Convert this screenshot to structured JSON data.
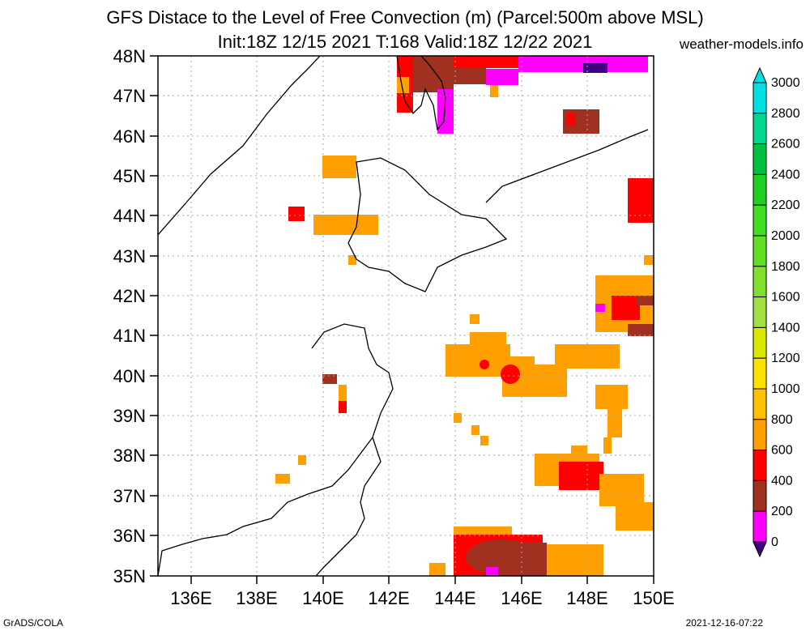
{
  "title_line1": "GFS Distace to the Level of Free Convection (m) (Parcel:500m above MSL)",
  "title_line2": "Init:18Z 12/15 2021 T:168 Valid:18Z 12/22 2021",
  "site": "weather-models.info",
  "footer_left": "GrADS/COLA",
  "footer_right": "2021-12-16-07:22",
  "lat_labels": [
    "48N",
    "47N",
    "46N",
    "45N",
    "44N",
    "43N",
    "42N",
    "41N",
    "40N",
    "39N",
    "38N",
    "37N",
    "36N",
    "35N"
  ],
  "lon_labels": [
    "136E",
    "138E",
    "140E",
    "142E",
    "144E",
    "146E",
    "148E",
    "150E"
  ],
  "colorbar": {
    "labels": [
      "3000",
      "2800",
      "2600",
      "2400",
      "2200",
      "2000",
      "1800",
      "1600",
      "1400",
      "1200",
      "1000",
      "800",
      "600",
      "400",
      "200",
      "0"
    ],
    "colors": [
      "#00e0e0",
      "#00d890",
      "#00c040",
      "#20d020",
      "#40dd20",
      "#60e020",
      "#80e030",
      "#a0e040",
      "#d8e800",
      "#ffe000",
      "#ffc000",
      "#ffa000",
      "#ff0000",
      "#a03020",
      "#ff00ff",
      "#400080"
    ]
  }
}
